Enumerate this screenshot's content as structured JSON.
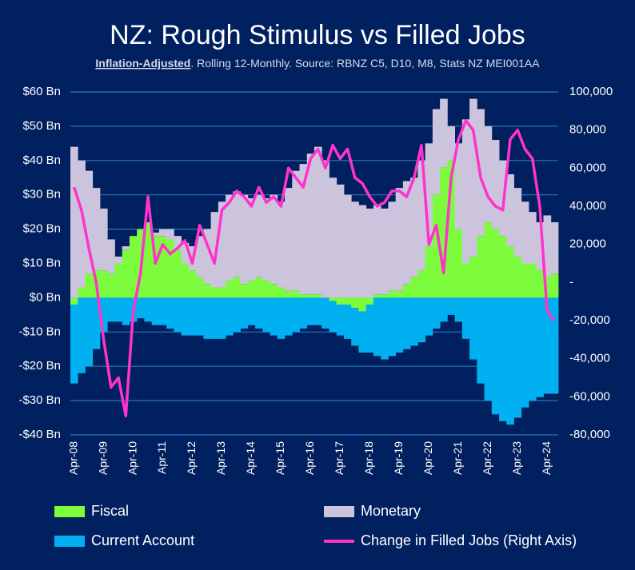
{
  "chart_data": {
    "type": "bar",
    "title": "NZ: Rough Stimulus vs Filled Jobs",
    "subtitle_bold": "Inflation-Adjusted",
    "subtitle": ". Rolling 12-Monthly. Source: RBNZ C5, D10, M8, Stats NZ MEI001AA",
    "categories": [
      "Apr-08",
      null,
      null,
      null,
      "Apr-09",
      null,
      null,
      null,
      "Apr-10",
      null,
      null,
      null,
      "Apr-11",
      null,
      null,
      null,
      "Apr-12",
      null,
      null,
      null,
      "Apr-13",
      null,
      null,
      null,
      "Apr-14",
      null,
      null,
      null,
      "Apr-15",
      null,
      null,
      null,
      "Apr-16",
      null,
      null,
      null,
      "Apr-17",
      null,
      null,
      null,
      "Apr-18",
      null,
      null,
      null,
      "Apr-19",
      null,
      null,
      null,
      "Apr-20",
      null,
      null,
      null,
      "Apr-21",
      null,
      null,
      null,
      "Apr-22",
      null,
      null,
      null,
      "Apr-23",
      null,
      null,
      null,
      "Apr-24",
      null
    ],
    "series": [
      {
        "name": "Fiscal",
        "type": "bar",
        "color": "#7CFC3C",
        "values": [
          -2,
          3,
          7,
          8,
          8,
          7,
          10,
          14,
          18,
          20,
          22,
          18,
          18,
          17,
          14,
          10,
          8,
          6,
          4,
          3,
          3,
          5,
          6,
          4,
          5,
          6,
          5,
          4,
          3,
          2,
          2,
          1,
          1,
          1,
          0,
          -1,
          -2,
          -2,
          -3,
          -4,
          -2,
          1,
          1,
          2,
          2,
          4,
          6,
          8,
          15,
          30,
          38,
          40,
          20,
          10,
          12,
          18,
          22,
          20,
          18,
          15,
          12,
          10,
          10,
          8,
          6,
          7
        ]
      },
      {
        "name": "Monetary",
        "type": "bar",
        "color": "#CCC4DC",
        "values": [
          44,
          37,
          30,
          24,
          18,
          10,
          2,
          1,
          0,
          0,
          0,
          1,
          2,
          3,
          4,
          6,
          7,
          12,
          16,
          22,
          25,
          25,
          25,
          26,
          24,
          24,
          24,
          26,
          25,
          30,
          35,
          38,
          41,
          43,
          40,
          35,
          33,
          30,
          28,
          27,
          26,
          26,
          25,
          26,
          30,
          30,
          29,
          32,
          30,
          25,
          20,
          10,
          25,
          42,
          46,
          37,
          28,
          26,
          22,
          21,
          20,
          18,
          15,
          14,
          18,
          15
        ]
      },
      {
        "name": "Current Account",
        "type": "bar",
        "color": "#00B0F0",
        "values": [
          -23,
          -22,
          -20,
          -15,
          -10,
          -7,
          -7,
          -8,
          -7,
          -6,
          -7,
          -8,
          -8,
          -9,
          -10,
          -11,
          -11,
          -11,
          -12,
          -12,
          -12,
          -11,
          -10,
          -9,
          -8,
          -9,
          -10,
          -11,
          -12,
          -11,
          -10,
          -9,
          -8,
          -8,
          -9,
          -9,
          -9,
          -10,
          -11,
          -12,
          -14,
          -17,
          -18,
          -17,
          -16,
          -15,
          -14,
          -13,
          -11,
          -9,
          -7,
          -5,
          -7,
          -12,
          -18,
          -25,
          -30,
          -34,
          -36,
          -37,
          -35,
          -32,
          -30,
          -29,
          -28,
          -28
        ]
      },
      {
        "name": "Change in Filled Jobs (Right Axis)",
        "type": "line",
        "axis": "y2",
        "color": "#FF33CC",
        "values": [
          50000,
          38000,
          18000,
          0,
          -30000,
          -55000,
          -50000,
          -70000,
          -15000,
          5000,
          45000,
          10000,
          20000,
          15000,
          18000,
          22000,
          10000,
          30000,
          20000,
          10000,
          38000,
          42000,
          48000,
          45000,
          40000,
          50000,
          42000,
          45000,
          40000,
          60000,
          55000,
          50000,
          65000,
          70000,
          60000,
          72000,
          65000,
          70000,
          55000,
          52000,
          45000,
          40000,
          42000,
          48000,
          48000,
          45000,
          55000,
          72000,
          20000,
          30000,
          5000,
          55000,
          75000,
          85000,
          80000,
          55000,
          45000,
          40000,
          38000,
          75000,
          80000,
          70000,
          65000,
          40000,
          -15000,
          -20000
        ]
      }
    ],
    "ylim": [
      -40,
      60
    ],
    "yticks": [
      {
        "value": -40,
        "label": "-$40 Bn"
      },
      {
        "value": -30,
        "label": "-$30 Bn"
      },
      {
        "value": -20,
        "label": "-$20 Bn"
      },
      {
        "value": -10,
        "label": "-$10 Bn"
      },
      {
        "value": 0,
        "label": "$0 Bn"
      },
      {
        "value": 10,
        "label": "$10 Bn"
      },
      {
        "value": 20,
        "label": "$20 Bn"
      },
      {
        "value": 30,
        "label": "$30 Bn"
      },
      {
        "value": 40,
        "label": "$40 Bn"
      },
      {
        "value": 50,
        "label": "$50 Bn"
      },
      {
        "value": 60,
        "label": "$60 Bn"
      }
    ],
    "y2lim": [
      -80000,
      100000
    ],
    "y2ticks": [
      {
        "value": -80000,
        "label": "-80,000"
      },
      {
        "value": -60000,
        "label": "-60,000"
      },
      {
        "value": -40000,
        "label": "-40,000"
      },
      {
        "value": -20000,
        "label": "-20,000"
      },
      {
        "value": 0,
        "label": "-"
      },
      {
        "value": 20000,
        "label": "20,000"
      },
      {
        "value": 40000,
        "label": "40,000"
      },
      {
        "value": 60000,
        "label": "60,000"
      },
      {
        "value": 80000,
        "label": "80,000"
      },
      {
        "value": 100000,
        "label": "100,000"
      }
    ],
    "grid": true
  }
}
